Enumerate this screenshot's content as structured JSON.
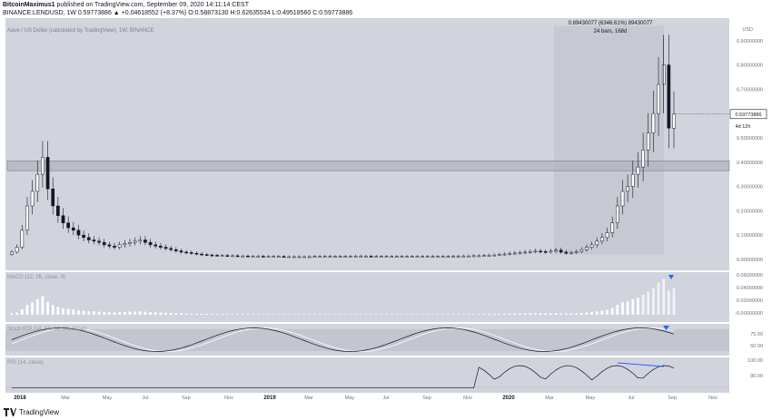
{
  "header": {
    "author": "BitcoinMaximus1",
    "published": "published on TradingView.com, September 09, 2020 14:11:14 CEST",
    "symbol_line": "BINANCE:LENDUSD, 1W 0.59773886 ▲ +0.04618552 (+8.37%) O:0.58873130 H:0.62635534 L:0.49518560 C:0.59773886"
  },
  "footer": {
    "brand": "TradingView",
    "logo_icon": "tradingview-logo-icon"
  },
  "chart_data": {
    "type": "candlestick",
    "title": "Aave / US Dollar (calculated by TradingView), 1W, BINANCE",
    "timeframe": "1W",
    "y_range": [
      -0.03,
      0.97
    ],
    "y_ticks": [
      "0.90000000",
      "0.80000000",
      "0.70000000",
      "0.60000000",
      "0.50000000",
      "0.40000000",
      "0.30000000",
      "0.20000000",
      "0.10000000",
      "0.00000000"
    ],
    "y_tick_values": [
      0.9,
      0.8,
      0.7,
      0.6,
      0.5,
      0.4,
      0.3,
      0.2,
      0.1,
      0.0
    ],
    "y_axis_top_label": "USD",
    "last_price_label": "0.59773886",
    "countdown_label": "4d 12h",
    "x_ticks": [
      "2018",
      "Mar",
      "May",
      "Jul",
      "Sep",
      "Nov",
      "2019",
      "Mar",
      "May",
      "Jul",
      "Sep",
      "Nov",
      "2020",
      "Mar",
      "May",
      "Jul",
      "Sep",
      "Nov"
    ],
    "resistance_zone": [
      0.365,
      0.405
    ],
    "measure": {
      "line1": "0.89430077 (6346.61%) 89430077",
      "line2": "24 bars, 168d",
      "low": 0.02,
      "high": 0.96
    },
    "candles_close": [
      0.03,
      0.05,
      0.12,
      0.22,
      0.28,
      0.35,
      0.42,
      0.29,
      0.22,
      0.18,
      0.15,
      0.13,
      0.12,
      0.1,
      0.09,
      0.08,
      0.075,
      0.07,
      0.06,
      0.055,
      0.05,
      0.06,
      0.065,
      0.07,
      0.075,
      0.08,
      0.07,
      0.06,
      0.055,
      0.05,
      0.045,
      0.04,
      0.035,
      0.03,
      0.028,
      0.025,
      0.022,
      0.02,
      0.018,
      0.017,
      0.016,
      0.016,
      0.015,
      0.015,
      0.014,
      0.014,
      0.013,
      0.013,
      0.013,
      0.012,
      0.012,
      0.012,
      0.012,
      0.011,
      0.011,
      0.011,
      0.011,
      0.011,
      0.011,
      0.012,
      0.012,
      0.012,
      0.012,
      0.012,
      0.012,
      0.012,
      0.012,
      0.013,
      0.013,
      0.013,
      0.012,
      0.012,
      0.012,
      0.012,
      0.012,
      0.012,
      0.012,
      0.012,
      0.012,
      0.012,
      0.012,
      0.012,
      0.012,
      0.012,
      0.012,
      0.012,
      0.013,
      0.013,
      0.014,
      0.014,
      0.015,
      0.015,
      0.016,
      0.017,
      0.018,
      0.02,
      0.022,
      0.024,
      0.026,
      0.028,
      0.03,
      0.032,
      0.034,
      0.032,
      0.03,
      0.034,
      0.038,
      0.03,
      0.025,
      0.028,
      0.032,
      0.04,
      0.05,
      0.06,
      0.075,
      0.09,
      0.11,
      0.15,
      0.22,
      0.28,
      0.3,
      0.35,
      0.38,
      0.45,
      0.52,
      0.6,
      0.72,
      0.8,
      0.54,
      0.5977
    ],
    "panes": [
      {
        "title": "MACD (12, 26, close, 9)",
        "ticks": [
          "0.06000000",
          "0.04000000",
          "0.02000000",
          "-0.00000000"
        ]
      },
      {
        "title": "Stoch RSI (14, 14, 14, 14, close)",
        "ticks": [
          "75.00",
          "50.00"
        ]
      },
      {
        "title": "RSI (14, close)",
        "ticks": [
          "100.00",
          "80.00"
        ]
      }
    ]
  }
}
